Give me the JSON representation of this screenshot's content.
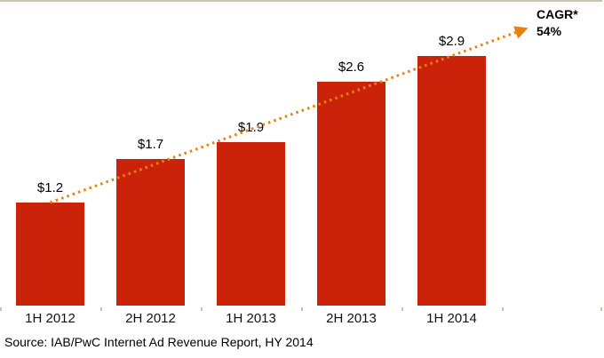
{
  "chart_data": {
    "type": "bar",
    "title": "",
    "categories": [
      "1H 2012",
      "2H 2012",
      "1H 2013",
      "2H 2013",
      "1H 2014"
    ],
    "values": [
      1.2,
      1.7,
      1.9,
      2.6,
      2.9
    ],
    "value_labels": [
      "$1.2",
      "$1.7",
      "$1.9",
      "$2.6",
      "$2.9"
    ],
    "bar_color": "#CB2309",
    "axis_color": "#CBC3AC",
    "gridlines": false,
    "legend": "none",
    "ylim": [
      0,
      3.5
    ],
    "trend": {
      "type": "dotted-arrow",
      "color": "#E8820F",
      "label_line1": "CAGR*",
      "label_line2": "54%"
    }
  },
  "source": {
    "text": "Source: IAB/PwC Internet Ad Revenue Report, HY 2014"
  }
}
